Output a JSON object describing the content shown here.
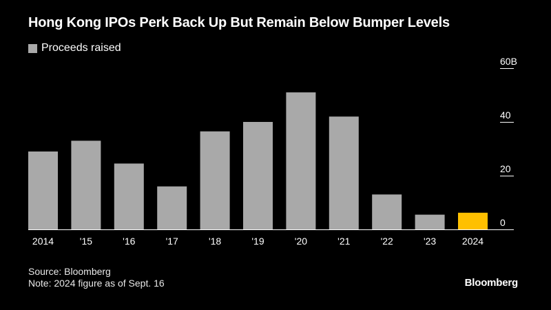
{
  "title": "Hong Kong IPOs Perk Back Up But Remain Below Bumper Levels",
  "legend": {
    "label": "Proceeds raised",
    "color": "#a9a9a9"
  },
  "colors": {
    "bar": "#a9a9a9",
    "highlight": "#ffc000",
    "background": "#000000",
    "text": "#ffffff"
  },
  "chart_data": {
    "type": "bar",
    "categories": [
      "2014",
      "'15",
      "'16",
      "'17",
      "'18",
      "'19",
      "'20",
      "'21",
      "'22",
      "'23",
      "2024"
    ],
    "values": [
      29,
      33,
      24.5,
      16,
      36.5,
      40,
      51,
      42,
      13,
      5.5,
      6.2
    ],
    "highlight_index": 10,
    "ylim": [
      0,
      60
    ],
    "yticks": [
      0,
      20,
      40,
      60
    ],
    "ytick_labels": [
      "0",
      "20",
      "40",
      "60B"
    ],
    "grid": false,
    "legend_position": "top-left"
  },
  "footer": {
    "source": "Source: Bloomberg",
    "note": "Note: 2024 figure as of Sept. 16"
  },
  "brand": "Bloomberg"
}
